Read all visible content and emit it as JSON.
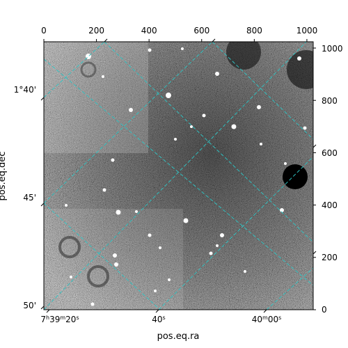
{
  "chart_data": {
    "type": "image",
    "colormap": "gray",
    "xlabel": "pos.eq.ra",
    "ylabel": "pos.eq.dec",
    "pixel_axes": {
      "x_range": [
        0,
        1024
      ],
      "y_range": [
        0,
        1024
      ],
      "top_ticks": [
        "0",
        "200",
        "400",
        "600",
        "800",
        "1000"
      ],
      "right_ticks": [
        "0",
        "200",
        "400",
        "600",
        "800",
        "1000"
      ]
    },
    "world_axes": {
      "ra_ticks": [
        {
          "h": "7",
          "m": "39",
          "s": "20",
          "label": "7h39m20s"
        },
        {
          "s": "40",
          "label": "40s"
        },
        {
          "m": "40",
          "s": "00",
          "label": "40m00s"
        }
      ],
      "dec_ticks": [
        "1°40'",
        "45'",
        "50'"
      ]
    },
    "grid": {
      "on": true,
      "color": "#2ec4c4",
      "style": "dashed"
    }
  }
}
